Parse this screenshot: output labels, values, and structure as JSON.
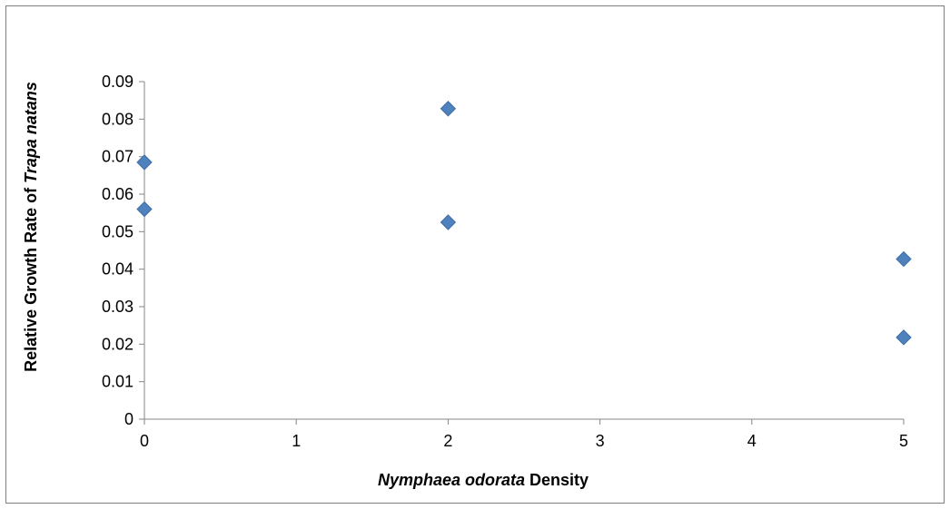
{
  "chart_data": {
    "type": "scatter",
    "title": "",
    "xlabel_parts": [
      {
        "text": "Nymphaea odorata",
        "italic": true
      },
      {
        "text": " Density",
        "italic": false
      }
    ],
    "ylabel_parts": [
      {
        "text": "Relative Growth Rate of ",
        "italic": false
      },
      {
        "text": "Trapa natans",
        "italic": true
      }
    ],
    "xlim": [
      0,
      5
    ],
    "ylim": [
      0,
      0.09
    ],
    "x_ticks": [
      "0",
      "1",
      "2",
      "3",
      "4",
      "5"
    ],
    "y_ticks": [
      "0",
      "0.01",
      "0.02",
      "0.03",
      "0.04",
      "0.05",
      "0.06",
      "0.07",
      "0.08",
      "0.09"
    ],
    "grid": false,
    "legend": "none",
    "series": [
      {
        "marker": "diamond",
        "color": "#4f81bd",
        "points": [
          {
            "x": 0,
            "y": 0.0685
          },
          {
            "x": 0,
            "y": 0.056
          },
          {
            "x": 2,
            "y": 0.0828
          },
          {
            "x": 2,
            "y": 0.0525
          },
          {
            "x": 5,
            "y": 0.0427
          },
          {
            "x": 5,
            "y": 0.0218
          }
        ]
      }
    ]
  }
}
